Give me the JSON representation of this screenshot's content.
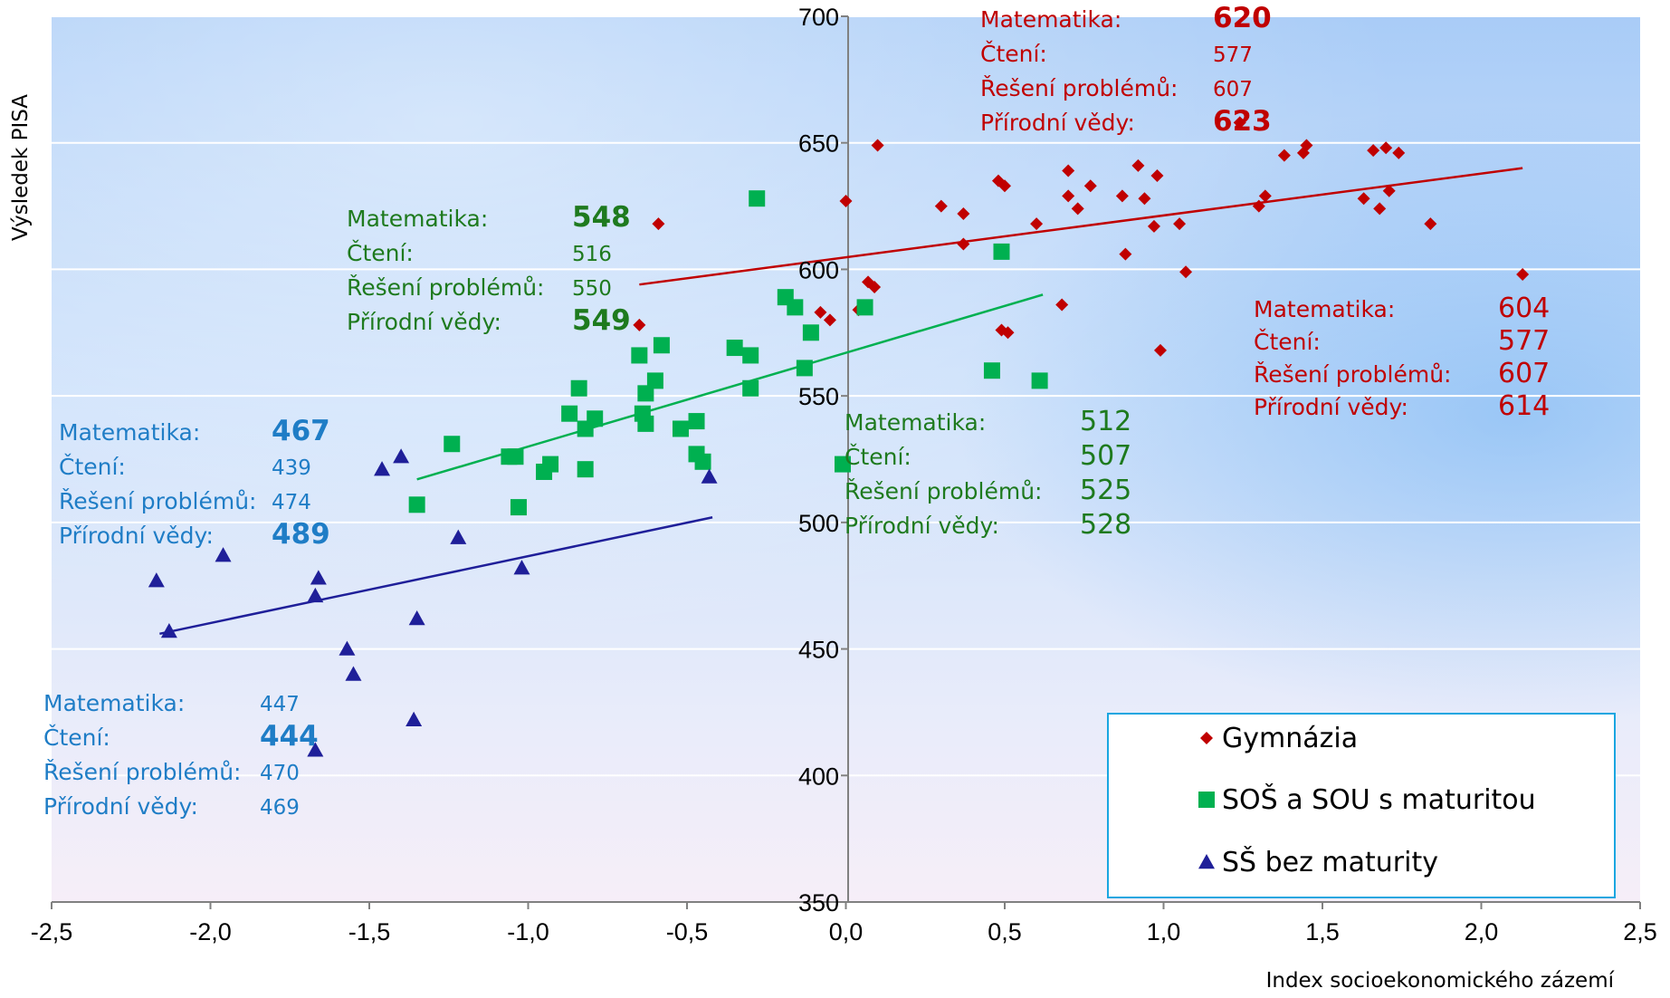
{
  "chart_data": {
    "type": "scatter",
    "xlabel": "Index socioekonomického zázemí",
    "ylabel": "Výsledek PISA",
    "xlim": [
      -2.5,
      2.5
    ],
    "ylim": [
      350,
      700
    ],
    "x_ticks": [
      "-2,5",
      "-2,0",
      "-1,5",
      "-1,0",
      "-0,5",
      "0,0",
      "0,5",
      "1,0",
      "1,5",
      "2,0",
      "2,5"
    ],
    "y_ticks": [
      "350",
      "400",
      "450",
      "500",
      "550",
      "600",
      "650",
      "700"
    ],
    "grid": "horizontal",
    "legend_position": "bottom-right",
    "series": [
      {
        "name": "Gymnázia",
        "marker": "diamond",
        "color": "#c00000",
        "points": [
          [
            -0.59,
            618
          ],
          [
            -0.65,
            578
          ],
          [
            0.0,
            627
          ],
          [
            0.1,
            649
          ],
          [
            0.07,
            595
          ],
          [
            0.09,
            593
          ],
          [
            -0.08,
            583
          ],
          [
            -0.05,
            580
          ],
          [
            0.04,
            584
          ],
          [
            0.3,
            625
          ],
          [
            0.37,
            622
          ],
          [
            0.37,
            610
          ],
          [
            0.48,
            635
          ],
          [
            0.5,
            633
          ],
          [
            0.6,
            618
          ],
          [
            0.7,
            639
          ],
          [
            0.7,
            629
          ],
          [
            0.73,
            624
          ],
          [
            0.77,
            633
          ],
          [
            0.87,
            629
          ],
          [
            0.68,
            586
          ],
          [
            0.49,
            576
          ],
          [
            0.51,
            575
          ],
          [
            0.88,
            606
          ],
          [
            0.92,
            641
          ],
          [
            0.94,
            628
          ],
          [
            0.97,
            617
          ],
          [
            0.98,
            637
          ],
          [
            0.99,
            568
          ],
          [
            1.05,
            618
          ],
          [
            1.07,
            599
          ],
          [
            1.24,
            658
          ],
          [
            1.3,
            625
          ],
          [
            1.32,
            629
          ],
          [
            1.38,
            645
          ],
          [
            1.44,
            646
          ],
          [
            1.45,
            649
          ],
          [
            1.63,
            628
          ],
          [
            1.66,
            647
          ],
          [
            1.68,
            624
          ],
          [
            1.7,
            648
          ],
          [
            1.71,
            631
          ],
          [
            1.74,
            646
          ],
          [
            1.84,
            618
          ],
          [
            2.13,
            598
          ]
        ],
        "trendline": [
          [
            -0.65,
            594
          ],
          [
            2.13,
            640
          ]
        ]
      },
      {
        "name": "SOŠ a SOU s maturitou",
        "marker": "square",
        "color": "#00b050",
        "points": [
          [
            -0.28,
            628
          ],
          [
            -0.19,
            589
          ],
          [
            -0.16,
            585
          ],
          [
            -0.11,
            575
          ],
          [
            -0.13,
            561
          ],
          [
            0.06,
            585
          ],
          [
            0.49,
            607
          ],
          [
            0.46,
            560
          ],
          [
            0.61,
            556
          ],
          [
            -0.01,
            523
          ],
          [
            -0.35,
            569
          ],
          [
            -0.3,
            566
          ],
          [
            -0.3,
            553
          ],
          [
            -0.58,
            570
          ],
          [
            -0.6,
            556
          ],
          [
            -0.63,
            551
          ],
          [
            -0.65,
            566
          ],
          [
            -0.64,
            543
          ],
          [
            -0.63,
            539
          ],
          [
            -0.52,
            537
          ],
          [
            -0.47,
            540
          ],
          [
            -0.47,
            527
          ],
          [
            -0.45,
            524
          ],
          [
            -0.84,
            553
          ],
          [
            -0.87,
            543
          ],
          [
            -0.82,
            537
          ],
          [
            -0.79,
            541
          ],
          [
            -0.82,
            521
          ],
          [
            -0.93,
            523
          ],
          [
            -0.95,
            520
          ],
          [
            -1.04,
            526
          ],
          [
            -1.06,
            526
          ],
          [
            -1.03,
            506
          ],
          [
            -1.24,
            531
          ],
          [
            -1.35,
            507
          ]
        ],
        "trendline": [
          [
            -1.35,
            517
          ],
          [
            0.62,
            590
          ]
        ]
      },
      {
        "name": "SŠ bez maturity",
        "marker": "triangle",
        "color": "#1f1f99",
        "points": [
          [
            -2.17,
            477
          ],
          [
            -2.13,
            457
          ],
          [
            -1.96,
            487
          ],
          [
            -1.67,
            471
          ],
          [
            -1.66,
            478
          ],
          [
            -1.67,
            410
          ],
          [
            -1.57,
            450
          ],
          [
            -1.55,
            440
          ],
          [
            -1.46,
            521
          ],
          [
            -1.4,
            526
          ],
          [
            -1.36,
            422
          ],
          [
            -1.35,
            462
          ],
          [
            -1.22,
            494
          ],
          [
            -1.02,
            482
          ],
          [
            -0.43,
            518
          ]
        ],
        "trendline": [
          [
            -2.16,
            456
          ],
          [
            -0.42,
            502
          ]
        ]
      }
    ],
    "annotations": [
      {
        "color": "#c00000",
        "rows": [
          {
            "label": "Matematika:",
            "value": "620",
            "emph": true
          },
          {
            "label": "Čtení:",
            "value": "577",
            "emph": false
          },
          {
            "label": "Řešení problémů:",
            "value": "607",
            "emph": false
          },
          {
            "label": "Přírodní vědy:",
            "value": "623",
            "emph": true
          }
        ]
      },
      {
        "color": "#c00000",
        "rows": [
          {
            "label": "Matematika:",
            "value": "604",
            "emph": false
          },
          {
            "label": "Čtení:",
            "value": "577",
            "emph": false
          },
          {
            "label": "Řešení problémů:",
            "value": "607",
            "emph": false
          },
          {
            "label": "Přírodní vědy:",
            "value": "614",
            "emph": false
          }
        ]
      },
      {
        "color": "#1e7a1e",
        "rows": [
          {
            "label": "Matematika:",
            "value": "548",
            "emph": true
          },
          {
            "label": "Čtení:",
            "value": "516",
            "emph": false
          },
          {
            "label": "Řešení problémů:",
            "value": "550",
            "emph": false
          },
          {
            "label": "Přírodní vědy:",
            "value": "549",
            "emph": true
          }
        ]
      },
      {
        "color": "#1e7a1e",
        "rows": [
          {
            "label": "Matematika:",
            "value": "512",
            "emph": false
          },
          {
            "label": "Čtení:",
            "value": "507",
            "emph": false
          },
          {
            "label": "Řešení problémů:",
            "value": "525",
            "emph": false
          },
          {
            "label": "Přírodní vědy:",
            "value": "528",
            "emph": false
          }
        ]
      },
      {
        "color": "#1f7dc6",
        "rows": [
          {
            "label": "Matematika:",
            "value": "467",
            "emph": true
          },
          {
            "label": "Čtení:",
            "value": "439",
            "emph": false
          },
          {
            "label": "Řešení problémů:",
            "value": "474",
            "emph": false
          },
          {
            "label": "Přírodní vědy:",
            "value": "489",
            "emph": true
          }
        ]
      },
      {
        "color": "#1f7dc6",
        "rows": [
          {
            "label": "Matematika:",
            "value": "447",
            "emph": false
          },
          {
            "label": "Čtení:",
            "value": "444",
            "emph": true
          },
          {
            "label": "Řešení problémů:",
            "value": "470",
            "emph": false
          },
          {
            "label": "Přírodní vědy:",
            "value": "469",
            "emph": false
          }
        ]
      }
    ]
  }
}
